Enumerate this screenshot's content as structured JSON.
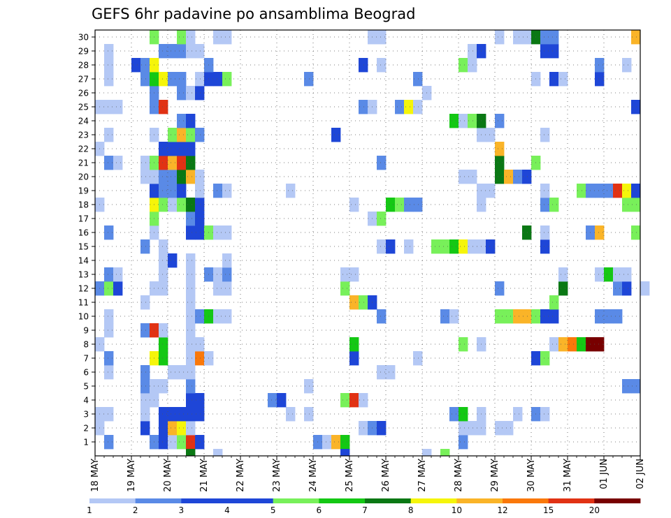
{
  "chart_data": {
    "type": "heatmap",
    "title": "GEFS 6hr padavine po ansamblima Beograd",
    "x_unit": "6-hour step",
    "x_range": [
      0,
      60
    ],
    "x_ticks": [
      {
        "step": 0,
        "label": "18 MAY"
      },
      {
        "step": 4,
        "label": "19 MAY"
      },
      {
        "step": 8,
        "label": "20 MAY"
      },
      {
        "step": 12,
        "label": "21 MAY"
      },
      {
        "step": 16,
        "label": "22 MAY"
      },
      {
        "step": 20,
        "label": "23 MAY"
      },
      {
        "step": 24,
        "label": "24 MAY"
      },
      {
        "step": 28,
        "label": "25 MAY"
      },
      {
        "step": 32,
        "label": "26 MAY"
      },
      {
        "step": 36,
        "label": "27 MAY"
      },
      {
        "step": 40,
        "label": "28 MAY"
      },
      {
        "step": 44,
        "label": "29 MAY"
      },
      {
        "step": 48,
        "label": "30 MAY"
      },
      {
        "step": 52,
        "label": "31 MAY"
      },
      {
        "step": 56,
        "label": "01 JUN"
      },
      {
        "step": 60,
        "label": "02 JUN"
      }
    ],
    "y_range": [
      0,
      30
    ],
    "y_ticks": [
      1,
      2,
      3,
      4,
      5,
      6,
      7,
      8,
      9,
      10,
      11,
      12,
      13,
      14,
      15,
      16,
      17,
      18,
      19,
      20,
      21,
      22,
      23,
      24,
      25,
      26,
      27,
      28,
      29,
      30
    ],
    "grid": true,
    "legend": {
      "placement": "bottom",
      "labels": [
        "1",
        "2",
        "3",
        "4",
        "5",
        "6",
        "7",
        "8",
        "10",
        "12",
        "15",
        "20"
      ],
      "colors": [
        "#b4c8f5",
        "#5a8ae6",
        "#1e46d7",
        "#1e46d7",
        "#78f05a",
        "#14c814",
        "#0a7814",
        "#f5f50a",
        "#fab428",
        "#fa780a",
        "#e13214",
        "#780000"
      ]
    },
    "color_scale": {
      "L": "#b4c8f5",
      "M": "#5a8ae6",
      "D": "#1e46d7",
      "G": "#78f05a",
      "E": "#14c814",
      "K": "#0a7814",
      "Y": "#f5f50a",
      "O": "#fab428",
      "A": "#fa780a",
      "R": "#e13214",
      "X": "#780000"
    },
    "cells": [
      [
        1,
        1,
        "M"
      ],
      [
        1,
        6,
        "M"
      ],
      [
        1,
        7,
        "D"
      ],
      [
        1,
        8,
        "L"
      ],
      [
        1,
        9,
        "G"
      ],
      [
        1,
        10,
        "R"
      ],
      [
        1,
        11,
        "D"
      ],
      [
        1,
        24,
        "M"
      ],
      [
        1,
        25,
        "L"
      ],
      [
        1,
        26,
        "O"
      ],
      [
        1,
        27,
        "E"
      ],
      [
        1,
        40,
        "M"
      ],
      [
        2,
        0,
        "L"
      ],
      [
        2,
        5,
        "D"
      ],
      [
        2,
        7,
        "D"
      ],
      [
        2,
        8,
        "O"
      ],
      [
        2,
        9,
        "Y"
      ],
      [
        2,
        10,
        "L"
      ],
      [
        2,
        29,
        "L"
      ],
      [
        2,
        30,
        "M"
      ],
      [
        2,
        31,
        "D"
      ],
      [
        2,
        40,
        "L"
      ],
      [
        2,
        41,
        "L"
      ],
      [
        2,
        42,
        "L"
      ],
      [
        2,
        44,
        "L"
      ],
      [
        2,
        45,
        "L"
      ],
      [
        3,
        0,
        "L"
      ],
      [
        3,
        1,
        "L"
      ],
      [
        3,
        5,
        "L"
      ],
      [
        3,
        7,
        "D"
      ],
      [
        3,
        8,
        "D"
      ],
      [
        3,
        9,
        "D"
      ],
      [
        3,
        10,
        "D"
      ],
      [
        3,
        11,
        "D"
      ],
      [
        3,
        21,
        "L"
      ],
      [
        3,
        23,
        "L"
      ],
      [
        3,
        39,
        "M"
      ],
      [
        3,
        40,
        "E"
      ],
      [
        3,
        42,
        "L"
      ],
      [
        3,
        46,
        "L"
      ],
      [
        3,
        48,
        "M"
      ],
      [
        3,
        49,
        "L"
      ],
      [
        4,
        5,
        "L"
      ],
      [
        4,
        6,
        "L"
      ],
      [
        4,
        10,
        "D"
      ],
      [
        4,
        11,
        "D"
      ],
      [
        4,
        19,
        "M"
      ],
      [
        4,
        20,
        "D"
      ],
      [
        4,
        27,
        "G"
      ],
      [
        4,
        28,
        "R"
      ],
      [
        4,
        29,
        "L"
      ],
      [
        5,
        5,
        "M"
      ],
      [
        5,
        6,
        "L"
      ],
      [
        5,
        7,
        "L"
      ],
      [
        5,
        10,
        "M"
      ],
      [
        5,
        23,
        "L"
      ],
      [
        5,
        58,
        "M"
      ],
      [
        5,
        59,
        "M"
      ],
      [
        6,
        1,
        "L"
      ],
      [
        6,
        5,
        "M"
      ],
      [
        6,
        8,
        "L"
      ],
      [
        6,
        9,
        "L"
      ],
      [
        6,
        10,
        "L"
      ],
      [
        6,
        31,
        "L"
      ],
      [
        6,
        32,
        "L"
      ],
      [
        7,
        1,
        "M"
      ],
      [
        7,
        6,
        "Y"
      ],
      [
        7,
        7,
        "E"
      ],
      [
        7,
        10,
        "L"
      ],
      [
        7,
        11,
        "A"
      ],
      [
        7,
        12,
        "L"
      ],
      [
        7,
        28,
        "D"
      ],
      [
        7,
        35,
        "L"
      ],
      [
        7,
        48,
        "D"
      ],
      [
        7,
        49,
        "G"
      ],
      [
        8,
        0,
        "L"
      ],
      [
        8,
        7,
        "E"
      ],
      [
        8,
        10,
        "L"
      ],
      [
        8,
        11,
        "L"
      ],
      [
        8,
        28,
        "E"
      ],
      [
        8,
        40,
        "G"
      ],
      [
        8,
        42,
        "L"
      ],
      [
        8,
        50,
        "L"
      ],
      [
        8,
        51,
        "O"
      ],
      [
        8,
        52,
        "A"
      ],
      [
        8,
        53,
        "E"
      ],
      [
        8,
        54,
        "X"
      ],
      [
        8,
        55,
        "X"
      ],
      [
        9,
        1,
        "L"
      ],
      [
        9,
        5,
        "M"
      ],
      [
        9,
        6,
        "R"
      ],
      [
        9,
        7,
        "L"
      ],
      [
        9,
        10,
        "L"
      ],
      [
        10,
        1,
        "L"
      ],
      [
        10,
        10,
        "L"
      ],
      [
        10,
        11,
        "M"
      ],
      [
        10,
        12,
        "E"
      ],
      [
        10,
        13,
        "L"
      ],
      [
        10,
        14,
        "L"
      ],
      [
        10,
        31,
        "M"
      ],
      [
        10,
        38,
        "M"
      ],
      [
        10,
        39,
        "L"
      ],
      [
        10,
        44,
        "G"
      ],
      [
        10,
        45,
        "G"
      ],
      [
        10,
        46,
        "O"
      ],
      [
        10,
        47,
        "O"
      ],
      [
        10,
        48,
        "G"
      ],
      [
        10,
        49,
        "D"
      ],
      [
        10,
        50,
        "D"
      ],
      [
        10,
        55,
        "M"
      ],
      [
        10,
        56,
        "M"
      ],
      [
        10,
        57,
        "M"
      ],
      [
        11,
        5,
        "L"
      ],
      [
        11,
        10,
        "L"
      ],
      [
        11,
        28,
        "O"
      ],
      [
        11,
        29,
        "G"
      ],
      [
        11,
        30,
        "D"
      ],
      [
        11,
        50,
        "G"
      ],
      [
        12,
        0,
        "M"
      ],
      [
        12,
        1,
        "G"
      ],
      [
        12,
        2,
        "D"
      ],
      [
        12,
        6,
        "L"
      ],
      [
        12,
        7,
        "L"
      ],
      [
        12,
        10,
        "L"
      ],
      [
        12,
        13,
        "L"
      ],
      [
        12,
        14,
        "L"
      ],
      [
        12,
        27,
        "G"
      ],
      [
        12,
        44,
        "M"
      ],
      [
        12,
        51,
        "K"
      ],
      [
        12,
        57,
        "M"
      ],
      [
        12,
        58,
        "D"
      ],
      [
        12,
        60,
        "L"
      ],
      [
        13,
        1,
        "M"
      ],
      [
        13,
        2,
        "L"
      ],
      [
        13,
        7,
        "L"
      ],
      [
        13,
        10,
        "L"
      ],
      [
        13,
        12,
        "M"
      ],
      [
        13,
        13,
        "L"
      ],
      [
        13,
        14,
        "M"
      ],
      [
        13,
        27,
        "L"
      ],
      [
        13,
        28,
        "L"
      ],
      [
        13,
        51,
        "L"
      ],
      [
        13,
        55,
        "L"
      ],
      [
        13,
        56,
        "E"
      ],
      [
        13,
        57,
        "L"
      ],
      [
        13,
        58,
        "L"
      ],
      [
        14,
        7,
        "L"
      ],
      [
        14,
        8,
        "D"
      ],
      [
        14,
        10,
        "L"
      ],
      [
        14,
        14,
        "L"
      ],
      [
        15,
        5,
        "M"
      ],
      [
        15,
        7,
        "L"
      ],
      [
        15,
        31,
        "L"
      ],
      [
        15,
        32,
        "D"
      ],
      [
        15,
        34,
        "L"
      ],
      [
        15,
        37,
        "G"
      ],
      [
        15,
        38,
        "G"
      ],
      [
        15,
        39,
        "E"
      ],
      [
        15,
        40,
        "Y"
      ],
      [
        15,
        41,
        "L"
      ],
      [
        15,
        42,
        "L"
      ],
      [
        15,
        43,
        "D"
      ],
      [
        15,
        49,
        "D"
      ],
      [
        16,
        1,
        "M"
      ],
      [
        16,
        6,
        "L"
      ],
      [
        16,
        10,
        "D"
      ],
      [
        16,
        11,
        "D"
      ],
      [
        16,
        12,
        "G"
      ],
      [
        16,
        13,
        "L"
      ],
      [
        16,
        14,
        "L"
      ],
      [
        16,
        47,
        "K"
      ],
      [
        16,
        49,
        "L"
      ],
      [
        16,
        54,
        "M"
      ],
      [
        16,
        55,
        "O"
      ],
      [
        16,
        59,
        "G"
      ],
      [
        17,
        6,
        "G"
      ],
      [
        17,
        10,
        "M"
      ],
      [
        17,
        11,
        "D"
      ],
      [
        17,
        30,
        "L"
      ],
      [
        17,
        31,
        "G"
      ],
      [
        18,
        0,
        "L"
      ],
      [
        18,
        6,
        "Y"
      ],
      [
        18,
        7,
        "G"
      ],
      [
        18,
        8,
        "L"
      ],
      [
        18,
        9,
        "G"
      ],
      [
        18,
        10,
        "K"
      ],
      [
        18,
        11,
        "D"
      ],
      [
        18,
        28,
        "L"
      ],
      [
        18,
        32,
        "E"
      ],
      [
        18,
        33,
        "G"
      ],
      [
        18,
        34,
        "M"
      ],
      [
        18,
        35,
        "M"
      ],
      [
        18,
        42,
        "L"
      ],
      [
        18,
        49,
        "M"
      ],
      [
        18,
        50,
        "G"
      ],
      [
        18,
        58,
        "G"
      ],
      [
        18,
        59,
        "G"
      ],
      [
        19,
        6,
        "D"
      ],
      [
        19,
        7,
        "M"
      ],
      [
        19,
        8,
        "M"
      ],
      [
        19,
        9,
        "D"
      ],
      [
        19,
        11,
        "L"
      ],
      [
        19,
        13,
        "M"
      ],
      [
        19,
        14,
        "L"
      ],
      [
        19,
        21,
        "L"
      ],
      [
        19,
        42,
        "L"
      ],
      [
        19,
        43,
        "L"
      ],
      [
        19,
        49,
        "L"
      ],
      [
        19,
        53,
        "G"
      ],
      [
        19,
        54,
        "M"
      ],
      [
        19,
        55,
        "M"
      ],
      [
        19,
        56,
        "M"
      ],
      [
        19,
        57,
        "R"
      ],
      [
        19,
        58,
        "Y"
      ],
      [
        19,
        59,
        "D"
      ],
      [
        20,
        5,
        "L"
      ],
      [
        20,
        6,
        "L"
      ],
      [
        20,
        7,
        "M"
      ],
      [
        20,
        8,
        "M"
      ],
      [
        20,
        9,
        "K"
      ],
      [
        20,
        10,
        "O"
      ],
      [
        20,
        11,
        "L"
      ],
      [
        20,
        40,
        "L"
      ],
      [
        20,
        41,
        "L"
      ],
      [
        20,
        44,
        "K"
      ],
      [
        20,
        45,
        "O"
      ],
      [
        20,
        46,
        "M"
      ],
      [
        20,
        47,
        "D"
      ],
      [
        21,
        1,
        "M"
      ],
      [
        21,
        2,
        "L"
      ],
      [
        21,
        5,
        "L"
      ],
      [
        21,
        6,
        "G"
      ],
      [
        21,
        7,
        "R"
      ],
      [
        21,
        8,
        "O"
      ],
      [
        21,
        9,
        "R"
      ],
      [
        21,
        10,
        "K"
      ],
      [
        21,
        31,
        "M"
      ],
      [
        21,
        44,
        "K"
      ],
      [
        21,
        48,
        "G"
      ],
      [
        22,
        0,
        "L"
      ],
      [
        22,
        7,
        "D"
      ],
      [
        22,
        8,
        "D"
      ],
      [
        22,
        9,
        "D"
      ],
      [
        22,
        10,
        "D"
      ],
      [
        22,
        44,
        "O"
      ],
      [
        23,
        1,
        "L"
      ],
      [
        23,
        6,
        "L"
      ],
      [
        23,
        8,
        "G"
      ],
      [
        23,
        9,
        "O"
      ],
      [
        23,
        10,
        "G"
      ],
      [
        23,
        11,
        "M"
      ],
      [
        23,
        26,
        "D"
      ],
      [
        23,
        42,
        "L"
      ],
      [
        23,
        43,
        "L"
      ],
      [
        23,
        49,
        "L"
      ],
      [
        24,
        9,
        "M"
      ],
      [
        24,
        10,
        "D"
      ],
      [
        24,
        39,
        "E"
      ],
      [
        24,
        40,
        "L"
      ],
      [
        24,
        41,
        "G"
      ],
      [
        24,
        42,
        "K"
      ],
      [
        24,
        44,
        "M"
      ],
      [
        25,
        0,
        "L"
      ],
      [
        25,
        1,
        "L"
      ],
      [
        25,
        2,
        "L"
      ],
      [
        25,
        6,
        "M"
      ],
      [
        25,
        7,
        "R"
      ],
      [
        25,
        29,
        "M"
      ],
      [
        25,
        30,
        "L"
      ],
      [
        25,
        33,
        "M"
      ],
      [
        25,
        34,
        "Y"
      ],
      [
        25,
        35,
        "L"
      ],
      [
        25,
        59,
        "D"
      ],
      [
        26,
        6,
        "M"
      ],
      [
        26,
        9,
        "M"
      ],
      [
        26,
        10,
        "L"
      ],
      [
        26,
        11,
        "D"
      ],
      [
        26,
        36,
        "L"
      ],
      [
        27,
        1,
        "L"
      ],
      [
        27,
        5,
        "M"
      ],
      [
        27,
        6,
        "E"
      ],
      [
        27,
        7,
        "Y"
      ],
      [
        27,
        8,
        "M"
      ],
      [
        27,
        9,
        "M"
      ],
      [
        27,
        11,
        "L"
      ],
      [
        27,
        12,
        "D"
      ],
      [
        27,
        13,
        "D"
      ],
      [
        27,
        14,
        "G"
      ],
      [
        27,
        23,
        "M"
      ],
      [
        27,
        35,
        "M"
      ],
      [
        27,
        48,
        "L"
      ],
      [
        27,
        50,
        "D"
      ],
      [
        27,
        51,
        "L"
      ],
      [
        27,
        55,
        "D"
      ],
      [
        28,
        1,
        "L"
      ],
      [
        28,
        4,
        "D"
      ],
      [
        28,
        5,
        "M"
      ],
      [
        28,
        6,
        "Y"
      ],
      [
        28,
        12,
        "M"
      ],
      [
        28,
        29,
        "D"
      ],
      [
        28,
        31,
        "L"
      ],
      [
        28,
        40,
        "G"
      ],
      [
        28,
        41,
        "L"
      ],
      [
        28,
        55,
        "M"
      ],
      [
        28,
        58,
        "L"
      ],
      [
        29,
        1,
        "L"
      ],
      [
        29,
        7,
        "M"
      ],
      [
        29,
        8,
        "M"
      ],
      [
        29,
        9,
        "M"
      ],
      [
        29,
        10,
        "L"
      ],
      [
        29,
        11,
        "L"
      ],
      [
        29,
        41,
        "L"
      ],
      [
        29,
        42,
        "D"
      ],
      [
        29,
        49,
        "D"
      ],
      [
        29,
        50,
        "D"
      ],
      [
        30,
        6,
        "G"
      ],
      [
        30,
        9,
        "G"
      ],
      [
        30,
        10,
        "L"
      ],
      [
        30,
        13,
        "L"
      ],
      [
        30,
        14,
        "L"
      ],
      [
        30,
        30,
        "L"
      ],
      [
        30,
        31,
        "L"
      ],
      [
        30,
        44,
        "L"
      ],
      [
        30,
        46,
        "L"
      ],
      [
        30,
        47,
        "L"
      ],
      [
        30,
        48,
        "K"
      ],
      [
        30,
        49,
        "M"
      ],
      [
        30,
        50,
        "M"
      ],
      [
        30,
        59,
        "O"
      ]
    ],
    "bottom_marks": [
      [
        10,
        "K"
      ],
      [
        27,
        "D"
      ],
      [
        36,
        "L"
      ],
      [
        38,
        "G"
      ],
      [
        13,
        "L"
      ]
    ]
  }
}
